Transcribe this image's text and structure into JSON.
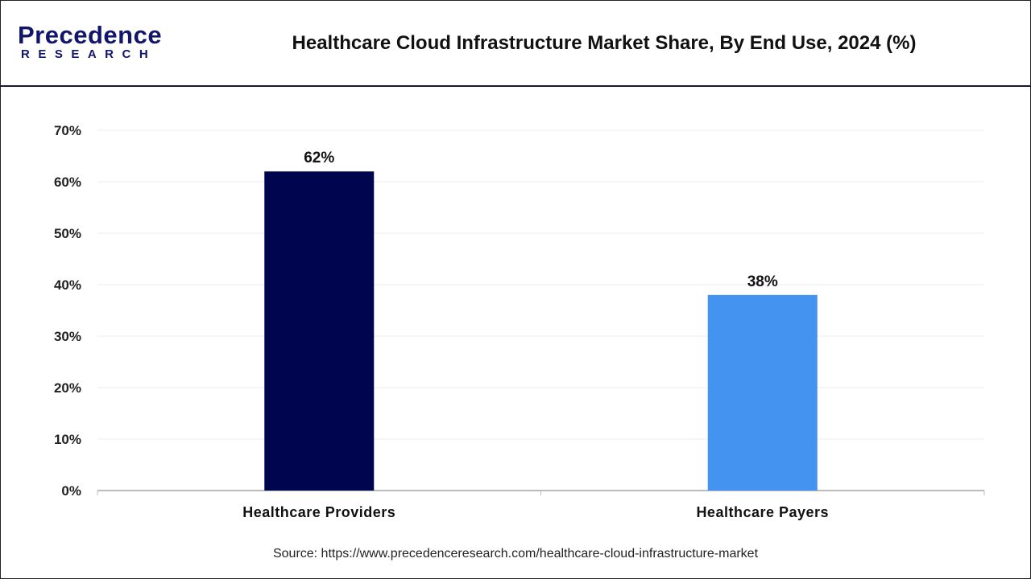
{
  "header": {
    "logo_text": "Precedence",
    "logo_subtext": "RESEARCH",
    "title": "Healthcare Cloud Infrastructure Market Share, By End Use, 2024 (%)"
  },
  "chart_data": {
    "type": "bar",
    "title": "Healthcare Cloud Infrastructure Market Share, By End Use, 2024 (%)",
    "categories": [
      "Healthcare Providers",
      "Healthcare Payers"
    ],
    "values": [
      62,
      38
    ],
    "data_labels": [
      "62%",
      "38%"
    ],
    "colors": [
      "#000550",
      "#4593f0"
    ],
    "ylim": [
      0,
      70
    ],
    "yticks": [
      0,
      10,
      20,
      30,
      40,
      50,
      60,
      70
    ],
    "ytick_labels": [
      "0%",
      "10%",
      "20%",
      "30%",
      "40%",
      "50%",
      "60%",
      "70%"
    ],
    "xlabel": "",
    "ylabel": "",
    "grid": true,
    "legend": "none"
  },
  "footer": {
    "source": "Source: https://www.precedenceresearch.com/healthcare-cloud-infrastructure-market"
  }
}
